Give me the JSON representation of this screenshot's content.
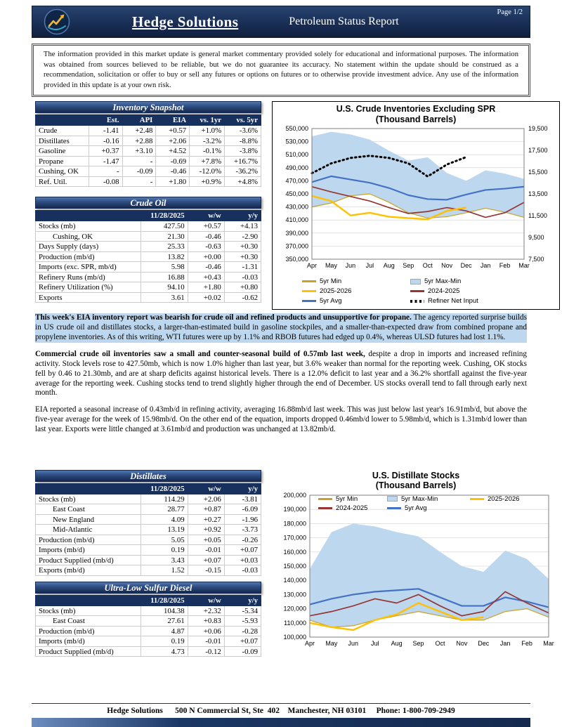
{
  "header": {
    "brand": "Hedge Solutions",
    "title": "Petroleum Status Report",
    "page": "Page 1/2"
  },
  "disclaimer": "The information provided in this market update is general market commentary provided solely for educational and informational purposes.  The information was obtained from sources believed to be reliable, but we do not guarantee its accuracy.  No statement within the update should be construed as a recommendation, solicitation or offer to buy or sell any futures or options on futures or to otherwise provide investment advice.  Any use of the information provided in this update is at your own risk.",
  "inventory_snapshot": {
    "title": "Inventory Snapshot",
    "columns": [
      "",
      "Est.",
      "API",
      "EIA",
      "vs. 1yr",
      "vs. 5yr"
    ],
    "rows": [
      {
        "label": "Crude",
        "values": [
          "-1.41",
          "+2.48",
          "+0.57",
          "+1.0%",
          "-3.6%"
        ]
      },
      {
        "label": "Distillates",
        "values": [
          "-0.16",
          "+2.88",
          "+2.06",
          "-3.2%",
          "-8.8%"
        ]
      },
      {
        "label": "Gasoline",
        "values": [
          "+0.37",
          "+3.10",
          "+4.52",
          "-0.1%",
          "-3.8%"
        ]
      },
      {
        "label": "Propane",
        "values": [
          "-1.47",
          "-",
          "-0.69",
          "+7.8%",
          "+16.7%"
        ]
      },
      {
        "label": "Cushing, OK",
        "values": [
          "-",
          "-0.09",
          "-0.46",
          "-12.0%",
          "-36.2%"
        ]
      },
      {
        "label": "Ref. Util.",
        "values": [
          "-0.08",
          "-",
          "+1.80",
          "+0.9%",
          "+4.8%"
        ]
      }
    ]
  },
  "crude_oil": {
    "title": "Crude Oil",
    "columns": [
      "",
      "11/28/2025",
      "w/w",
      "y/y"
    ],
    "rows": [
      {
        "label": "Stocks (mb)",
        "values": [
          "427.50",
          "+0.57",
          "+4.13"
        ]
      },
      {
        "label": "Cushing, OK",
        "indent": true,
        "values": [
          "21.30",
          "-0.46",
          "-2.90"
        ]
      },
      {
        "label": "Days Supply (days)",
        "values": [
          "25.33",
          "-0.63",
          "+0.30"
        ]
      },
      {
        "label": "Production (mb/d)",
        "values": [
          "13.82",
          "+0.00",
          "+0.30"
        ]
      },
      {
        "label": "Imports (exc. SPR, mb/d)",
        "values": [
          "5.98",
          "-0.46",
          "-1.31"
        ]
      },
      {
        "label": "Refinery Runs (mb/d)",
        "values": [
          "16.88",
          "+0.43",
          "-0.03"
        ]
      },
      {
        "label": "Refinery Utilization (%)",
        "values": [
          "94.10",
          "+1.80",
          "+0.80"
        ]
      },
      {
        "label": "Exports",
        "values": [
          "3.61",
          "+0.02",
          "-0.62"
        ]
      }
    ]
  },
  "commentary": {
    "p1_bold": "This week's EIA inventory report was bearish for crude oil and refined products and unsupportive for propane.",
    "p1_rest": " The agency reported surprise builds in US crude oil and distillates stocks, a larger-than-estimated build in gasoline stockpiles, and a smaller-than-expected draw from combined propane and propylene inventories. As of this writing, WTI futures were up by 1.1% and RBOB futures had edged up 0.4%, whereas ULSD futures had lost 1.1%.",
    "p2_bold": "Commercial crude oil inventories saw a small and counter-seasonal build of 0.57mb last week,",
    "p2_rest": " despite a drop in imports and increased refining activity. Stock levels rose to 427.50mb, which is now 1.0% higher than last year, but 3.6% weaker than normal for the reporting week. Cushing, OK stocks fell by 0.46 to 21.30mb, and are at sharp deficits against historical levels. There is a 12.0% deficit to last year and a 36.2% shortfall against the five-year average for the reporting week. Cushing stocks tend to trend slightly higher through the end of December. US stocks overall tend to fall through early next month.",
    "p3": "EIA reported a seasonal increase of 0.43mb/d in refining activity, averaging 16.88mb/d last week. This was just below last year's 16.91mb/d, but above the five-year average for the week of 15.98mb/d. On the other end of the equation, imports dropped 0.46mb/d lower to 5.98mb/d, which is 1.31mb/d lower than last year. Exports were little changed at 3.61mb/d and production was unchanged at 13.82mb/d."
  },
  "distillates": {
    "title": "Distillates",
    "columns": [
      "",
      "11/28/2025",
      "w/w",
      "y/y"
    ],
    "rows": [
      {
        "label": "Stocks (mb)",
        "values": [
          "114.29",
          "+2.06",
          "-3.81"
        ]
      },
      {
        "label": "East Coast",
        "indent": true,
        "values": [
          "28.77",
          "+0.87",
          "-6.09"
        ]
      },
      {
        "label": "New England",
        "indent": true,
        "values": [
          "4.09",
          "+0.27",
          "-1.96"
        ]
      },
      {
        "label": "Mid-Atlantic",
        "indent": true,
        "values": [
          "13.19",
          "+0.92",
          "-3.73"
        ]
      },
      {
        "label": "Production (mb/d)",
        "values": [
          "5.05",
          "+0.05",
          "-0.26"
        ]
      },
      {
        "label": "Imports (mb/d)",
        "values": [
          "0.19",
          "-0.01",
          "+0.07"
        ]
      },
      {
        "label": "Product Supplied (mb/d)",
        "values": [
          "3.43",
          "+0.07",
          "+0.03"
        ]
      },
      {
        "label": "Exports (mb/d)",
        "values": [
          "1.52",
          "-0.15",
          "-0.03"
        ]
      }
    ]
  },
  "ulsd": {
    "title": "Ultra-Low Sulfur Diesel",
    "columns": [
      "",
      "11/28/2025",
      "w/w",
      "y/y"
    ],
    "rows": [
      {
        "label": "Stocks (mb)",
        "values": [
          "104.38",
          "+2.32",
          "-5.34"
        ]
      },
      {
        "label": "East Coast",
        "indent": true,
        "values": [
          "27.61",
          "+0.83",
          "-5.93"
        ]
      },
      {
        "label": "Production (mb/d)",
        "values": [
          "4.87",
          "+0.06",
          "-0.28"
        ]
      },
      {
        "label": "Imports (mb/d)",
        "values": [
          "0.19",
          "-0.01",
          "+0.07"
        ]
      },
      {
        "label": "Product Supplied (mb/d)",
        "values": [
          "4.73",
          "-0.12",
          "-0.09"
        ]
      }
    ]
  },
  "footer": {
    "text": "Hedge Solutions      500 N Commercial St, Ste  402    Manchester, NH 03101     Phone: 1-800-709-2949"
  },
  "chart_data": [
    {
      "type": "line",
      "title": "U.S. Crude Inventories Excluding SPR",
      "subtitle": "(Thousand Barrels)",
      "x_labels": [
        "Apr",
        "May",
        "Jun",
        "Jul",
        "Aug",
        "Sep",
        "Oct",
        "Nov",
        "Dec",
        "Jan",
        "Feb",
        "Mar"
      ],
      "left_axis": {
        "min": 350000,
        "max": 550000,
        "step": 20000
      },
      "right_axis": {
        "min": 7500,
        "max": 19500,
        "step": 2000
      },
      "grid": true,
      "legend_position": "bottom",
      "series": [
        {
          "name": "5yr Max-Min",
          "type": "band",
          "color": "#BDD7EE",
          "upper": [
            538000,
            545000,
            541000,
            533000,
            516000,
            501000,
            506000,
            482000,
            470000,
            486000,
            481000,
            473000
          ],
          "lower": [
            430000,
            436000,
            447000,
            450000,
            437000,
            421000,
            413000,
            415000,
            421000,
            428000,
            422000,
            414000
          ]
        },
        {
          "name": "5yr Min",
          "type": "line",
          "color": "#C9A227",
          "width": 1.2,
          "values": [
            430000,
            436000,
            447000,
            450000,
            437000,
            421000,
            413000,
            415000,
            421000,
            428000,
            422000,
            414000
          ]
        },
        {
          "name": "5yr Avg",
          "type": "line",
          "color": "#4472C4",
          "width": 2.2,
          "values": [
            468000,
            477000,
            472000,
            467000,
            459000,
            448000,
            442000,
            441000,
            449000,
            456000,
            458000,
            461000
          ]
        },
        {
          "name": "2024-2025",
          "type": "line",
          "color": "#943634",
          "width": 1.7,
          "values": [
            461000,
            453000,
            446000,
            439000,
            429000,
            420000,
            423000,
            429000,
            424000,
            414000,
            421000,
            437000
          ]
        },
        {
          "name": "2025-2026",
          "type": "line",
          "color": "#FFC000",
          "width": 2.4,
          "values": [
            447000,
            439000,
            417000,
            421000,
            415000,
            413000,
            411000,
            424000,
            429000,
            null,
            null,
            null
          ]
        },
        {
          "name": "Refiner Net Input",
          "type": "line",
          "color": "#000000",
          "width": 3,
          "dotted": true,
          "axis": "right",
          "values": [
            15400,
            16300,
            16800,
            17000,
            16800,
            16300,
            15100,
            16200,
            16880,
            null,
            null,
            null
          ]
        }
      ]
    },
    {
      "type": "line",
      "title": "U.S. Distillate Stocks",
      "subtitle": "(Thousand Barrels)",
      "x_labels": [
        "Apr",
        "May",
        "Jun",
        "Jul",
        "Aug",
        "Sep",
        "Oct",
        "Nov",
        "Dec",
        "Jan",
        "Feb",
        "Mar"
      ],
      "left_axis": {
        "min": 100000,
        "max": 200000,
        "step": 10000
      },
      "grid": true,
      "legend_position": "top-inside",
      "series": [
        {
          "name": "5yr Max-Min",
          "type": "band",
          "color": "#BDD7EE",
          "upper": [
            148000,
            174000,
            180000,
            178000,
            174000,
            171000,
            160000,
            150000,
            146000,
            161000,
            155000,
            141000
          ],
          "lower": [
            112000,
            107000,
            108000,
            112000,
            115000,
            118000,
            115000,
            112000,
            112000,
            118000,
            120000,
            114000
          ]
        },
        {
          "name": "5yr Min",
          "type": "line",
          "color": "#C9A227",
          "width": 1.2,
          "values": [
            112000,
            107000,
            108000,
            112000,
            115000,
            118000,
            115000,
            112000,
            112000,
            118000,
            120000,
            114000
          ]
        },
        {
          "name": "5yr Avg",
          "type": "line",
          "color": "#4472C4",
          "width": 2.2,
          "values": [
            123000,
            127000,
            130000,
            132000,
            133000,
            134000,
            128000,
            122000,
            122000,
            128000,
            125000,
            121000
          ]
        },
        {
          "name": "2024-2025",
          "type": "line",
          "color": "#943634",
          "width": 1.7,
          "values": [
            115000,
            118000,
            122000,
            127000,
            124000,
            130000,
            122000,
            115000,
            118000,
            132000,
            124000,
            117000
          ]
        },
        {
          "name": "2025-2026",
          "type": "line",
          "color": "#FFC000",
          "width": 2.4,
          "values": [
            110000,
            107000,
            105000,
            112000,
            116000,
            124000,
            118000,
            112000,
            114000,
            null,
            null,
            null
          ]
        }
      ]
    }
  ]
}
